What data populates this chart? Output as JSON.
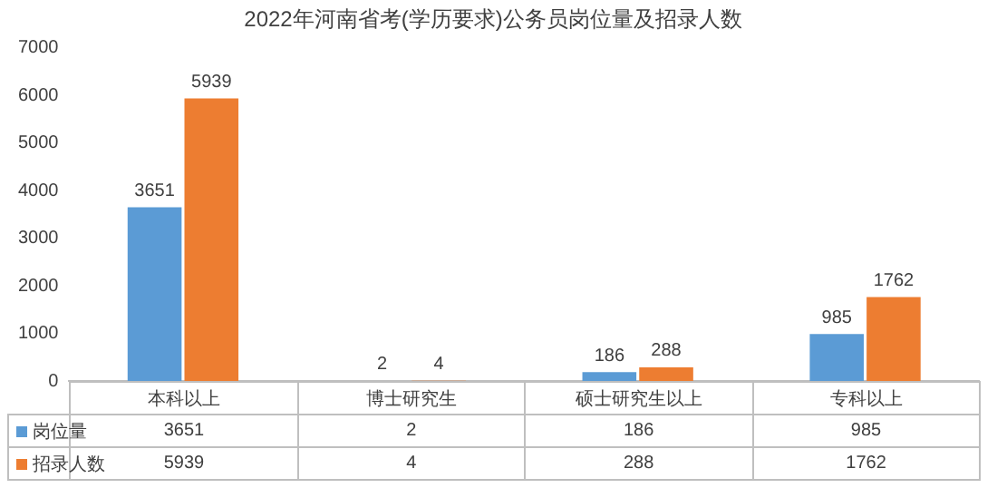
{
  "chart_data": {
    "type": "bar",
    "title": "2022年河南省考(学历要求)公务员岗位量及招录人数",
    "categories": [
      "本科以上",
      "博士研究生",
      "硕士研究生以上",
      "专科以上"
    ],
    "series": [
      {
        "name": "岗位量",
        "color": "#5b9bd5",
        "values": [
          3651,
          2,
          186,
          985
        ],
        "value_labels": [
          "3651",
          "2",
          "186",
          "985"
        ]
      },
      {
        "name": "招录人数",
        "color": "#ed7d31",
        "values": [
          5939,
          4,
          288,
          1762
        ],
        "value_labels": [
          "5939",
          "4",
          "288",
          "1762"
        ]
      }
    ],
    "ylim": [
      0,
      7000
    ],
    "yticks": [
      0,
      1000,
      2000,
      3000,
      4000,
      5000,
      6000,
      7000
    ],
    "annotations": [
      "3651",
      "2",
      "186",
      "985",
      "5939",
      "4",
      "288",
      "1762"
    ],
    "grid": false,
    "data_labels": true,
    "legend": "bottom left"
  }
}
